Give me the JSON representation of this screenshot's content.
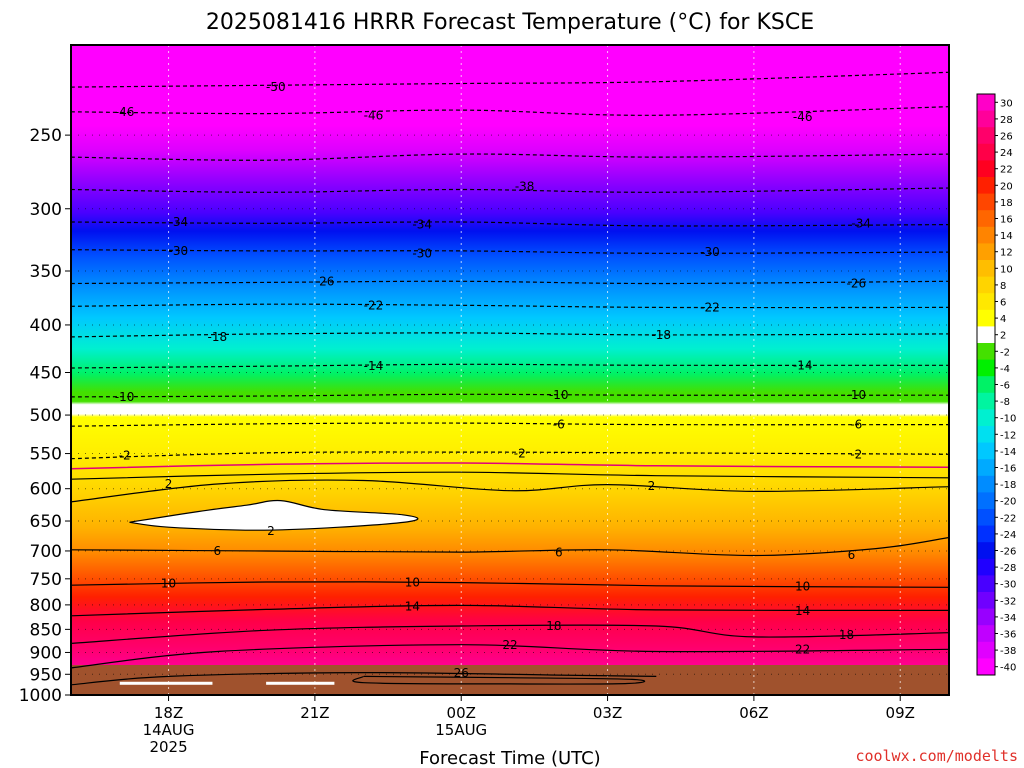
{
  "chart_data": {
    "type": "heatmap",
    "title": "2025081416 HRRR Forecast Temperature (°C) for KSCE",
    "xlabel": "Forecast Time (UTC)",
    "ylabel": "",
    "credit": "coolwx.com/modelts",
    "x_ticks": [
      {
        "hour": 18,
        "lines": [
          "18Z",
          "14AUG",
          "2025"
        ]
      },
      {
        "hour": 21,
        "lines": [
          "21Z"
        ]
      },
      {
        "hour": 24,
        "lines": [
          "00Z",
          "15AUG"
        ]
      },
      {
        "hour": 27,
        "lines": [
          "03Z"
        ]
      },
      {
        "hour": 30,
        "lines": [
          "06Z"
        ]
      },
      {
        "hour": 33,
        "lines": [
          "09Z"
        ]
      }
    ],
    "xlim": [
      16,
      34
    ],
    "y_ticks": [
      250,
      300,
      350,
      400,
      450,
      500,
      550,
      600,
      650,
      700,
      750,
      800,
      850,
      900,
      950,
      1000
    ],
    "ylim": [
      1000,
      200
    ],
    "y_scale": "log-pressure",
    "grid": true,
    "ground_pressure": 975,
    "colorbar": {
      "labels": [
        "30",
        "28",
        "26",
        "24",
        "22",
        "20",
        "18",
        "16",
        "14",
        "12",
        "10",
        "8",
        "6",
        "4",
        "2",
        "-2",
        "-4",
        "-6",
        "-8",
        "-10",
        "-12",
        "-14",
        "-16",
        "-18",
        "-20",
        "-22",
        "-24",
        "-26",
        "-28",
        "-30",
        "-32",
        "-34",
        "-36",
        "-38",
        "-40"
      ],
      "colors": [
        "#ff00c8",
        "#ff009a",
        "#ff006a",
        "#ff0048",
        "#ff0020",
        "#ff2000",
        "#ff4600",
        "#ff6600",
        "#ff8400",
        "#ffa000",
        "#ffbe00",
        "#ffd400",
        "#ffe800",
        "#ffff00",
        "#ffffff",
        "#44e000",
        "#00f000",
        "#00f266",
        "#00f5a0",
        "#00f0d0",
        "#00e0f0",
        "#00c8ff",
        "#00aaff",
        "#008cff",
        "#0070ff",
        "#0050ff",
        "#0030ff",
        "#0010f0",
        "#2000ff",
        "#4800ff",
        "#7000ff",
        "#9800ff",
        "#c000ff",
        "#e000ff",
        "#ff00ff"
      ]
    },
    "series": [
      {
        "name": "-50",
        "values": [
          {
            "x": 16,
            "p": 222
          },
          {
            "x": 20,
            "p": 221
          },
          {
            "x": 24,
            "p": 220
          },
          {
            "x": 28,
            "p": 219
          },
          {
            "x": 34,
            "p": 214
          }
        ]
      },
      {
        "name": "-46",
        "values": [
          {
            "x": 16,
            "p": 236
          },
          {
            "x": 20,
            "p": 237
          },
          {
            "x": 24,
            "p": 235
          },
          {
            "x": 28,
            "p": 238
          },
          {
            "x": 34,
            "p": 233
          }
        ]
      },
      {
        "name": "-42",
        "values": [
          {
            "x": 16,
            "p": 264
          },
          {
            "x": 20,
            "p": 266
          },
          {
            "x": 24,
            "p": 262
          },
          {
            "x": 28,
            "p": 264
          },
          {
            "x": 34,
            "p": 262
          }
        ]
      },
      {
        "name": "-38",
        "values": [
          {
            "x": 16,
            "p": 286
          },
          {
            "x": 20,
            "p": 288
          },
          {
            "x": 24,
            "p": 286
          },
          {
            "x": 28,
            "p": 288
          },
          {
            "x": 34,
            "p": 285
          }
        ]
      },
      {
        "name": "-34",
        "values": [
          {
            "x": 16,
            "p": 310
          },
          {
            "x": 20,
            "p": 311
          },
          {
            "x": 24,
            "p": 310
          },
          {
            "x": 28,
            "p": 313
          },
          {
            "x": 34,
            "p": 312
          }
        ]
      },
      {
        "name": "-30",
        "values": [
          {
            "x": 16,
            "p": 332
          },
          {
            "x": 20,
            "p": 333
          },
          {
            "x": 24,
            "p": 333
          },
          {
            "x": 28,
            "p": 335
          },
          {
            "x": 34,
            "p": 334
          }
        ]
      },
      {
        "name": "-26",
        "values": [
          {
            "x": 16,
            "p": 361
          },
          {
            "x": 20,
            "p": 360
          },
          {
            "x": 24,
            "p": 359
          },
          {
            "x": 28,
            "p": 361
          },
          {
            "x": 34,
            "p": 359
          }
        ]
      },
      {
        "name": "-22",
        "values": [
          {
            "x": 16,
            "p": 382
          },
          {
            "x": 20,
            "p": 380
          },
          {
            "x": 24,
            "p": 381
          },
          {
            "x": 28,
            "p": 383
          },
          {
            "x": 34,
            "p": 383
          }
        ]
      },
      {
        "name": "-18",
        "values": [
          {
            "x": 16,
            "p": 412
          },
          {
            "x": 20,
            "p": 409
          },
          {
            "x": 24,
            "p": 408
          },
          {
            "x": 28,
            "p": 410
          },
          {
            "x": 34,
            "p": 409
          }
        ]
      },
      {
        "name": "-14",
        "values": [
          {
            "x": 16,
            "p": 445
          },
          {
            "x": 20,
            "p": 443
          },
          {
            "x": 24,
            "p": 441
          },
          {
            "x": 28,
            "p": 442
          },
          {
            "x": 34,
            "p": 442
          }
        ]
      },
      {
        "name": "-10",
        "values": [
          {
            "x": 16,
            "p": 478
          },
          {
            "x": 20,
            "p": 477
          },
          {
            "x": 24,
            "p": 475
          },
          {
            "x": 28,
            "p": 476
          },
          {
            "x": 34,
            "p": 476
          }
        ]
      },
      {
        "name": "-6",
        "values": [
          {
            "x": 16,
            "p": 514
          },
          {
            "x": 20,
            "p": 511
          },
          {
            "x": 24,
            "p": 510
          },
          {
            "x": 28,
            "p": 512
          },
          {
            "x": 34,
            "p": 512
          }
        ]
      },
      {
        "name": "-2",
        "values": [
          {
            "x": 16,
            "p": 557
          },
          {
            "x": 20,
            "p": 549
          },
          {
            "x": 24,
            "p": 548
          },
          {
            "x": 28,
            "p": 549
          },
          {
            "x": 34,
            "p": 551
          }
        ]
      },
      {
        "name": "2",
        "values": [
          {
            "x": 16,
            "p": 586
          },
          {
            "x": 20,
            "p": 579
          },
          {
            "x": 24,
            "p": 576
          },
          {
            "x": 28,
            "p": 581
          },
          {
            "x": 34,
            "p": 584
          }
        ]
      },
      {
        "name": "2",
        "values": [
          {
            "x": 16,
            "p": 620
          },
          {
            "x": 19,
            "p": 593
          },
          {
            "x": 22,
            "p": 588
          },
          {
            "x": 25,
            "p": 603
          },
          {
            "x": 27,
            "p": 594
          },
          {
            "x": 30,
            "p": 604
          },
          {
            "x": 34,
            "p": 597
          }
        ]
      },
      {
        "name": "6",
        "values": [
          {
            "x": 16,
            "p": 698
          },
          {
            "x": 20,
            "p": 700
          },
          {
            "x": 24,
            "p": 702
          },
          {
            "x": 27,
            "p": 698
          },
          {
            "x": 30,
            "p": 708
          },
          {
            "x": 32.5,
            "p": 696
          },
          {
            "x": 34,
            "p": 677
          }
        ]
      },
      {
        "name": "10",
        "values": [
          {
            "x": 16,
            "p": 762
          },
          {
            "x": 20,
            "p": 756
          },
          {
            "x": 24,
            "p": 757
          },
          {
            "x": 28,
            "p": 763
          },
          {
            "x": 34,
            "p": 766
          }
        ]
      },
      {
        "name": "14",
        "values": [
          {
            "x": 16,
            "p": 822
          },
          {
            "x": 20,
            "p": 809
          },
          {
            "x": 24,
            "p": 801
          },
          {
            "x": 28,
            "p": 810
          },
          {
            "x": 34,
            "p": 811
          }
        ]
      },
      {
        "name": "18",
        "values": [
          {
            "x": 16,
            "p": 880
          },
          {
            "x": 20,
            "p": 852
          },
          {
            "x": 24,
            "p": 843
          },
          {
            "x": 28,
            "p": 843
          },
          {
            "x": 30,
            "p": 866
          },
          {
            "x": 34,
            "p": 857
          }
        ]
      },
      {
        "name": "22",
        "values": [
          {
            "x": 16,
            "p": 935
          },
          {
            "x": 19,
            "p": 898
          },
          {
            "x": 24,
            "p": 883
          },
          {
            "x": 28,
            "p": 898
          },
          {
            "x": 34,
            "p": 893
          }
        ]
      },
      {
        "name": "26",
        "values": [
          {
            "x": 16,
            "p": 975
          },
          {
            "x": 18,
            "p": 955
          },
          {
            "x": 22,
            "p": 946
          },
          {
            "x": 26,
            "p": 952
          },
          {
            "x": 28,
            "p": 955
          }
        ]
      }
    ],
    "annotations": [
      {
        "text": "-50",
        "x": 20.2,
        "p": 222
      },
      {
        "text": "-46",
        "x": 17.1,
        "p": 236
      },
      {
        "text": "-46",
        "x": 22.2,
        "p": 238
      },
      {
        "text": "-46",
        "x": 31.0,
        "p": 239
      },
      {
        "text": "-38",
        "x": 25.3,
        "p": 284
      },
      {
        "text": "-34",
        "x": 18.2,
        "p": 310
      },
      {
        "text": "-34",
        "x": 23.2,
        "p": 312
      },
      {
        "text": "-34",
        "x": 32.2,
        "p": 311
      },
      {
        "text": "-30",
        "x": 18.2,
        "p": 333
      },
      {
        "text": "-30",
        "x": 23.2,
        "p": 335
      },
      {
        "text": "-30",
        "x": 29.1,
        "p": 334
      },
      {
        "text": "-26",
        "x": 21.2,
        "p": 359
      },
      {
        "text": "-26",
        "x": 32.1,
        "p": 361
      },
      {
        "text": "-22",
        "x": 22.2,
        "p": 381
      },
      {
        "text": "-22",
        "x": 29.1,
        "p": 383
      },
      {
        "text": "-18",
        "x": 19.0,
        "p": 412
      },
      {
        "text": "-18",
        "x": 28.1,
        "p": 410
      },
      {
        "text": "-14",
        "x": 22.2,
        "p": 443
      },
      {
        "text": "-14",
        "x": 31.0,
        "p": 442
      },
      {
        "text": "-10",
        "x": 17.1,
        "p": 478
      },
      {
        "text": "-10",
        "x": 26.0,
        "p": 476
      },
      {
        "text": "-10",
        "x": 32.1,
        "p": 476
      },
      {
        "text": "-6",
        "x": 26.0,
        "p": 512
      },
      {
        "text": "-6",
        "x": 32.1,
        "p": 512
      },
      {
        "text": "-2",
        "x": 17.1,
        "p": 553
      },
      {
        "text": "-2",
        "x": 25.2,
        "p": 550
      },
      {
        "text": "-2",
        "x": 32.1,
        "p": 551
      },
      {
        "text": "2",
        "x": 18.0,
        "p": 593
      },
      {
        "text": "2",
        "x": 20.1,
        "p": 666
      },
      {
        "text": "2",
        "x": 27.9,
        "p": 596
      },
      {
        "text": "6",
        "x": 19.0,
        "p": 700
      },
      {
        "text": "6",
        "x": 26.0,
        "p": 703
      },
      {
        "text": "6",
        "x": 32.0,
        "p": 707
      },
      {
        "text": "10",
        "x": 18.0,
        "p": 759
      },
      {
        "text": "10",
        "x": 23.0,
        "p": 757
      },
      {
        "text": "10",
        "x": 31.0,
        "p": 764
      },
      {
        "text": "14",
        "x": 23.0,
        "p": 803
      },
      {
        "text": "14",
        "x": 31.0,
        "p": 812
      },
      {
        "text": "18",
        "x": 25.9,
        "p": 843
      },
      {
        "text": "18",
        "x": 31.9,
        "p": 862
      },
      {
        "text": "22",
        "x": 25.0,
        "p": 884
      },
      {
        "text": "22",
        "x": 31.0,
        "p": 894
      },
      {
        "text": "26",
        "x": 24.0,
        "p": 947
      }
    ]
  }
}
